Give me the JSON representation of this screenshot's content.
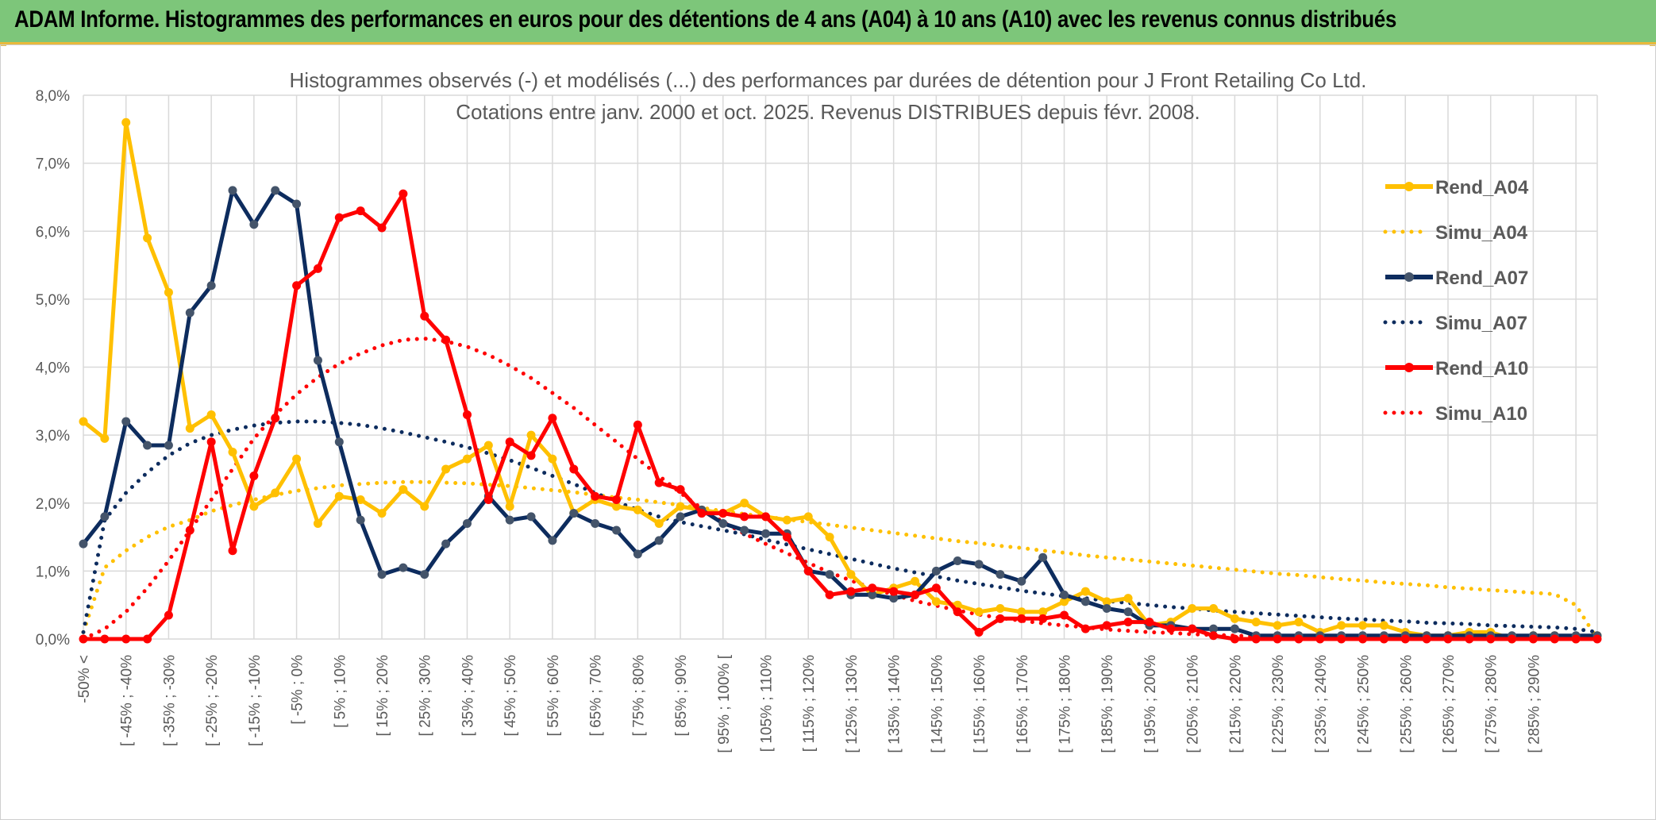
{
  "header": {
    "title": "ADAM Informe. Histogrammes des performances en euros pour des détentions de 4 ans (A04) à 10 ans (A10) avec les revenus connus distribués"
  },
  "chart_data": {
    "type": "line",
    "title": "Histogrammes observés (-) et modélisés (...) des performances par durées de détention pour J Front Retailing Co Ltd.",
    "subtitle": "Cotations entre janv. 2000 et oct. 2025. Revenus DISTRIBUES depuis févr. 2008.",
    "xlabel": "",
    "ylabel": "",
    "ylim": [
      0,
      8
    ],
    "y_ticks": [
      "0,0%",
      "1,0%",
      "2,0%",
      "3,0%",
      "4,0%",
      "5,0%",
      "6,0%",
      "7,0%",
      "8,0%"
    ],
    "grid": true,
    "legend_position": "right",
    "x_tick_labels": [
      "-50% <",
      "[ -45% ; -40%",
      "[ -35% ; -30%",
      "[ -25% ; -20%",
      "[ -15% ; -10%",
      "[ -5% ; 0%",
      "[ 5% ; 10%",
      "[ 15% ; 20%",
      "[ 25% ; 30%",
      "[ 35% ; 40%",
      "[ 45% ; 50%",
      "[ 55% ; 60%",
      "[ 65% ; 70%",
      "[ 75% ; 80%",
      "[ 85% ; 90%",
      "[ 95% ; 100% [",
      "[ 105% ; 110%",
      "[ 115% ; 120%",
      "[ 125% ; 130%",
      "[ 135% ; 140%",
      "[ 145% ; 150%",
      "[ 155% ; 160%",
      "[ 165% ; 170%",
      "[ 175% ; 180%",
      "[ 185% ; 190%",
      "[ 195% ; 200%",
      "[ 205% ; 210%",
      "[ 215% ; 220%",
      "[ 225% ; 230%",
      "[ 235% ; 240%",
      "[ 245% ; 250%",
      "[ 255% ; 260%",
      "[ 265% ; 270%",
      "[ 275% ; 280%",
      "[ 285% ; 290%"
    ],
    "series": [
      {
        "name": "Rend_A04",
        "style": "solid",
        "color": "#ffc000",
        "marker_color": "#ffc000",
        "values": [
          3.2,
          2.95,
          7.6,
          5.9,
          5.1,
          3.1,
          3.3,
          2.75,
          1.95,
          2.15,
          2.65,
          1.7,
          2.1,
          2.05,
          1.85,
          2.2,
          1.95,
          2.5,
          2.65,
          2.85,
          1.95,
          3.0,
          2.65,
          1.85,
          2.05,
          1.95,
          1.9,
          1.7,
          1.95,
          1.9,
          1.85,
          2.0,
          1.8,
          1.75,
          1.8,
          1.5,
          0.95,
          0.65,
          0.75,
          0.85,
          0.55,
          0.5,
          0.4,
          0.45,
          0.4,
          0.4,
          0.55,
          0.7,
          0.55,
          0.6,
          0.2,
          0.25,
          0.45,
          0.45,
          0.3,
          0.25,
          0.2,
          0.25,
          0.1,
          0.2,
          0.2,
          0.2,
          0.1,
          0.05,
          0.05,
          0.1,
          0.1,
          0.0,
          0.05,
          0.05,
          0.0,
          0.05
        ]
      },
      {
        "name": "Simu_A04",
        "style": "dotted",
        "color": "#ffc000",
        "values": [
          0.1,
          1.05,
          1.3,
          1.5,
          1.65,
          1.75,
          1.88,
          1.97,
          2.05,
          2.12,
          2.18,
          2.22,
          2.26,
          2.28,
          2.3,
          2.31,
          2.31,
          2.3,
          2.29,
          2.27,
          2.25,
          2.22,
          2.19,
          2.16,
          2.12,
          2.08,
          2.05,
          2.01,
          1.97,
          1.93,
          1.88,
          1.84,
          1.8,
          1.76,
          1.72,
          1.68,
          1.64,
          1.6,
          1.56,
          1.52,
          1.48,
          1.44,
          1.41,
          1.37,
          1.34,
          1.3,
          1.27,
          1.23,
          1.2,
          1.17,
          1.14,
          1.11,
          1.08,
          1.05,
          1.02,
          0.99,
          0.96,
          0.94,
          0.91,
          0.88,
          0.86,
          0.83,
          0.81,
          0.79,
          0.76,
          0.74,
          0.72,
          0.7,
          0.68,
          0.66,
          0.5,
          0.0
        ]
      },
      {
        "name": "Rend_A07",
        "style": "solid",
        "color": "#0d2c5e",
        "marker_color": "#44546a",
        "values": [
          1.4,
          1.8,
          3.2,
          2.85,
          2.85,
          4.8,
          5.2,
          6.6,
          6.1,
          6.6,
          6.4,
          4.1,
          2.9,
          1.75,
          0.95,
          1.05,
          0.95,
          1.4,
          1.7,
          2.1,
          1.75,
          1.8,
          1.45,
          1.85,
          1.7,
          1.6,
          1.25,
          1.45,
          1.8,
          1.9,
          1.7,
          1.6,
          1.55,
          1.55,
          1.0,
          0.95,
          0.65,
          0.65,
          0.6,
          0.65,
          1.0,
          1.15,
          1.1,
          0.95,
          0.85,
          1.2,
          0.65,
          0.55,
          0.45,
          0.4,
          0.2,
          0.2,
          0.15,
          0.15,
          0.15,
          0.05,
          0.05,
          0.05,
          0.05,
          0.05,
          0.05,
          0.05,
          0.05,
          0.05,
          0.05,
          0.05,
          0.05,
          0.05,
          0.05,
          0.05,
          0.05,
          0.05
        ]
      },
      {
        "name": "Simu_A07",
        "style": "dotted",
        "color": "#0d2c5e",
        "values": [
          0.1,
          1.75,
          2.15,
          2.45,
          2.7,
          2.88,
          3.0,
          3.08,
          3.14,
          3.18,
          3.2,
          3.2,
          3.18,
          3.15,
          3.1,
          3.04,
          2.97,
          2.9,
          2.82,
          2.73,
          2.63,
          2.52,
          2.4,
          2.28,
          2.15,
          2.02,
          1.9,
          1.8,
          1.72,
          1.66,
          1.6,
          1.54,
          1.46,
          1.39,
          1.32,
          1.25,
          1.18,
          1.11,
          1.04,
          0.98,
          0.92,
          0.86,
          0.81,
          0.76,
          0.71,
          0.67,
          0.63,
          0.6,
          0.56,
          0.53,
          0.5,
          0.47,
          0.45,
          0.42,
          0.4,
          0.38,
          0.36,
          0.34,
          0.32,
          0.3,
          0.29,
          0.27,
          0.26,
          0.24,
          0.23,
          0.22,
          0.2,
          0.19,
          0.18,
          0.17,
          0.15,
          0.1
        ]
      },
      {
        "name": "Rend_A10",
        "style": "solid",
        "color": "#ff0000",
        "marker_color": "#ff0000",
        "values": [
          0.0,
          0.0,
          0.0,
          0.0,
          0.35,
          1.6,
          2.9,
          1.3,
          2.4,
          3.25,
          5.2,
          5.45,
          6.2,
          6.3,
          6.05,
          6.55,
          4.75,
          4.4,
          3.3,
          2.05,
          2.9,
          2.7,
          3.25,
          2.5,
          2.1,
          2.05,
          3.15,
          2.3,
          2.2,
          1.85,
          1.85,
          1.8,
          1.8,
          1.5,
          1.0,
          0.65,
          0.7,
          0.75,
          0.7,
          0.65,
          0.75,
          0.4,
          0.1,
          0.3,
          0.3,
          0.3,
          0.35,
          0.15,
          0.2,
          0.25,
          0.25,
          0.15,
          0.15,
          0.05,
          0.0,
          0.0,
          0.0,
          0.0,
          0.0,
          0.0,
          0.0,
          0.0,
          0.0,
          0.0,
          0.0,
          0.0,
          0.0,
          0.0,
          0.0,
          0.0,
          0.0,
          0.0
        ]
      },
      {
        "name": "Simu_A10",
        "style": "dotted",
        "color": "#ff0000",
        "values": [
          0.0,
          0.15,
          0.4,
          0.75,
          1.15,
          1.6,
          2.05,
          2.5,
          2.95,
          3.3,
          3.6,
          3.85,
          4.05,
          4.2,
          4.32,
          4.4,
          4.42,
          4.38,
          4.3,
          4.18,
          4.02,
          3.84,
          3.62,
          3.4,
          3.15,
          2.9,
          2.65,
          2.4,
          2.15,
          1.92,
          1.72,
          1.55,
          1.4,
          1.26,
          1.12,
          0.98,
          0.86,
          0.75,
          0.65,
          0.56,
          0.49,
          0.42,
          0.36,
          0.31,
          0.27,
          0.23,
          0.2,
          0.17,
          0.14,
          0.12,
          0.1,
          0.09,
          0.07,
          0.06,
          0.05,
          0.04,
          0.03,
          0.03,
          0.02,
          0.02,
          0.02,
          0.01,
          0.01,
          0.01,
          0.01,
          0.0,
          0.0,
          0.0,
          0.0,
          0.0,
          0.0,
          0.0
        ]
      }
    ]
  }
}
